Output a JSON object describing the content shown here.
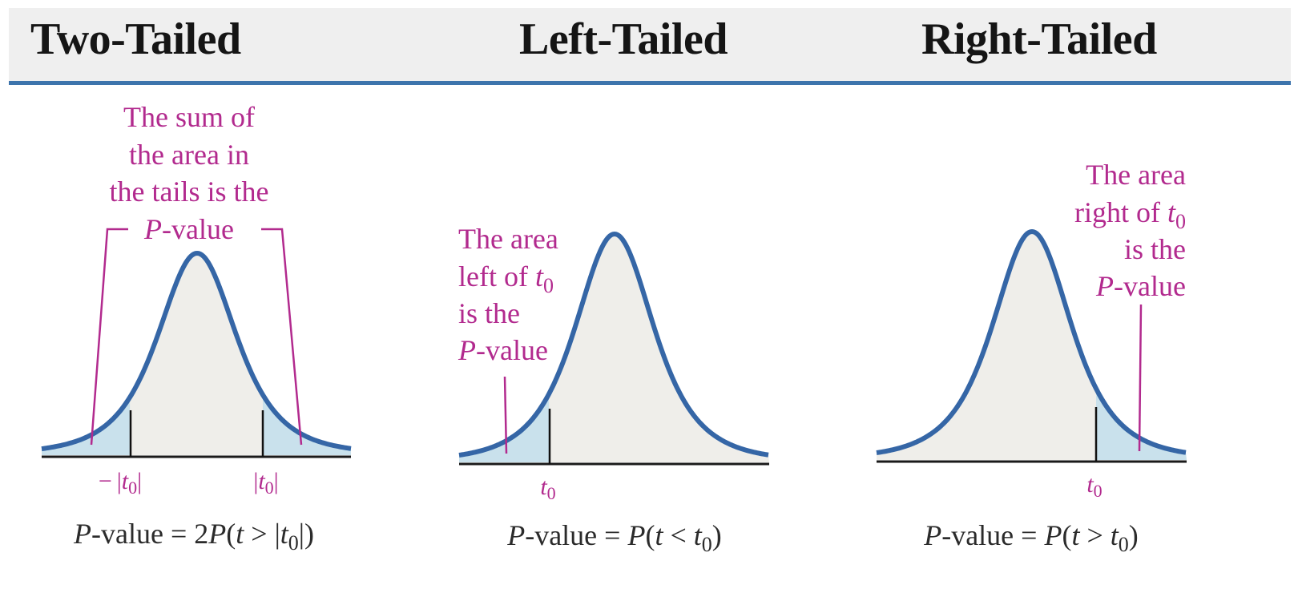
{
  "panels": [
    {
      "title": "Two-Tailed",
      "annotation": [
        "The sum of",
        "the area in",
        "the tails is the",
        "P",
        "-value"
      ],
      "ticks": {
        "neg_minus": "−",
        "t": "t",
        "sub": "0"
      },
      "formula": {
        "p": "P",
        "mid": "-value = 2",
        "p2": "P",
        "open": "(",
        "t": "t",
        "gt": " > |",
        "t0": "t",
        "sub": "0",
        "close": "|)"
      }
    },
    {
      "title": "Left-Tailed",
      "annotation": [
        "The area",
        "left of ",
        "t",
        "0",
        "is the",
        "P",
        "-value"
      ],
      "ticks": {
        "t": "t",
        "sub": "0"
      },
      "formula": {
        "p": "P",
        "mid": "-value = ",
        "p2": "P",
        "open": "(",
        "t": "t",
        "op": " < ",
        "t0": "t",
        "sub": "0",
        "close": ")"
      }
    },
    {
      "title": "Right-Tailed",
      "annotation": [
        "The area",
        "right of ",
        "t",
        "0",
        "is the",
        "P",
        "-value"
      ],
      "ticks": {
        "t": "t",
        "sub": "0"
      },
      "formula": {
        "p": "P",
        "mid": "-value = ",
        "p2": "P",
        "open": "(",
        "t": "t",
        "op": " > ",
        "t0": "t",
        "sub": "0",
        "close": ")"
      }
    }
  ],
  "colors": {
    "curve": "#3566a6",
    "body_fill": "#efeeea",
    "tail_fill": "#c9e1ec",
    "annotation": "#b22a8e",
    "header_bg": "#efefef",
    "header_rule": "#3d74ac"
  }
}
